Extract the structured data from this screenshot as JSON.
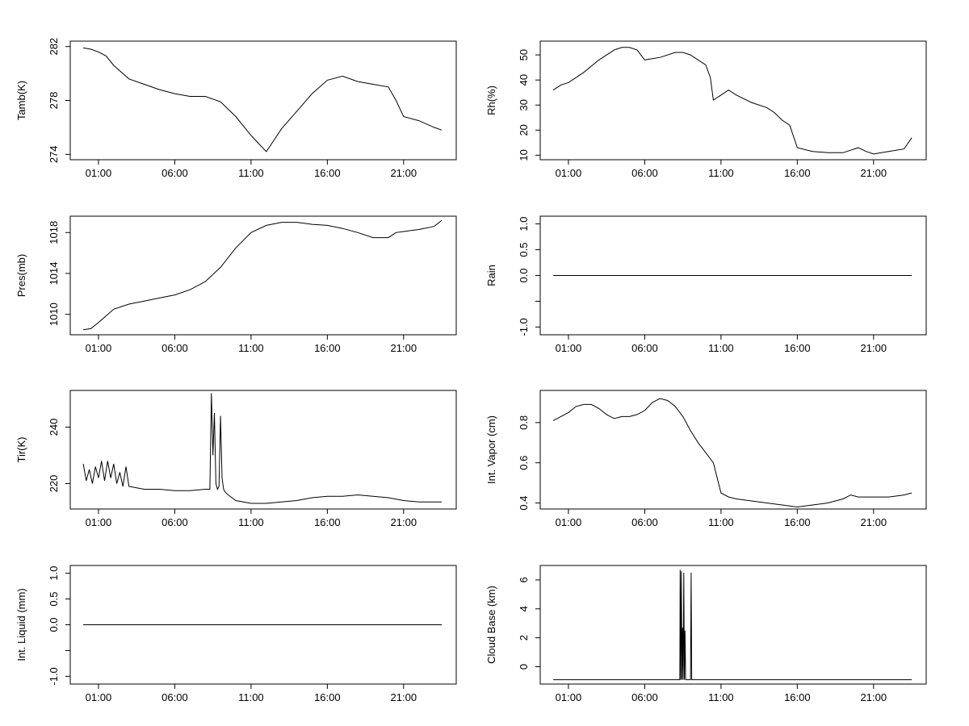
{
  "x_ticks": [
    "01:00",
    "06:00",
    "11:00",
    "16:00",
    "21:00"
  ],
  "chart_data": [
    {
      "type": "line",
      "ylabel": "Tamb(K)",
      "ylim": [
        273.6,
        282.4
      ],
      "yticks": [
        274,
        278,
        282
      ],
      "x": [
        0.0,
        0.5,
        1.0,
        1.5,
        2.0,
        3.0,
        4.0,
        5.0,
        6.0,
        7.0,
        8.0,
        9.0,
        10.0,
        11.0,
        11.5,
        12.0,
        13.0,
        14.0,
        15.0,
        16.0,
        17.0,
        18.0,
        19.0,
        20.0,
        20.5,
        21.0,
        22.0,
        23.0,
        23.5
      ],
      "values": [
        281.9,
        281.8,
        281.6,
        281.3,
        280.6,
        279.6,
        279.2,
        278.8,
        278.5,
        278.3,
        278.3,
        277.9,
        276.8,
        275.4,
        274.8,
        274.2,
        275.9,
        277.2,
        278.5,
        279.5,
        279.8,
        279.4,
        279.2,
        279.0,
        278.0,
        276.8,
        276.5,
        276.0,
        275.8
      ]
    },
    {
      "type": "line",
      "ylabel": "Rh(%)",
      "ylim": [
        8.2,
        55.5
      ],
      "yticks": [
        10,
        20,
        30,
        40,
        50
      ],
      "x": [
        0.0,
        0.5,
        1.0,
        2.0,
        3.0,
        4.0,
        4.5,
        5.0,
        5.5,
        6.0,
        7.0,
        8.0,
        8.5,
        9.0,
        9.5,
        10.0,
        10.3,
        10.5,
        11.0,
        11.5,
        12.0,
        13.0,
        14.0,
        14.5,
        15.0,
        15.5,
        16.0,
        17.0,
        18.0,
        19.0,
        19.5,
        20.0,
        20.5,
        21.0,
        22.0,
        23.0,
        23.5
      ],
      "values": [
        36,
        38,
        39,
        43,
        48,
        52,
        53,
        53,
        52,
        48,
        49,
        51,
        51,
        50,
        48,
        46,
        41,
        32,
        34,
        36,
        34,
        31,
        29,
        27,
        24,
        22,
        13,
        11.5,
        11,
        11,
        12,
        13,
        11.5,
        10.5,
        11.5,
        12.5,
        17
      ]
    },
    {
      "type": "line",
      "ylabel": "Pres(mb)",
      "ylim": [
        1008.0,
        1019.6
      ],
      "yticks": [
        1010,
        1014,
        1018
      ],
      "x": [
        0.0,
        0.5,
        1.0,
        2.0,
        3.0,
        4.0,
        5.0,
        6.0,
        7.0,
        8.0,
        9.0,
        10.0,
        11.0,
        12.0,
        13.0,
        14.0,
        15.0,
        16.0,
        17.0,
        18.0,
        19.0,
        20.0,
        20.5,
        21.0,
        22.0,
        23.0,
        23.5
      ],
      "values": [
        1008.5,
        1008.6,
        1009.2,
        1010.5,
        1011.0,
        1011.3,
        1011.6,
        1011.9,
        1012.4,
        1013.2,
        1014.6,
        1016.5,
        1018.0,
        1018.7,
        1019.0,
        1019.0,
        1018.8,
        1018.7,
        1018.4,
        1018.0,
        1017.5,
        1017.5,
        1018.0,
        1018.1,
        1018.3,
        1018.6,
        1019.2
      ]
    },
    {
      "type": "line",
      "ylabel": "Rain",
      "ylim": [
        -1.15,
        1.15
      ],
      "yticks": [
        -1.0,
        -0.5,
        0.0,
        0.5,
        1.0
      ],
      "ytick_labels": [
        "-1.0",
        "",
        "0.0",
        "0.5",
        "1.0"
      ],
      "x": [
        0.0,
        23.5
      ],
      "values": [
        0.0,
        0.0
      ]
    },
    {
      "type": "line",
      "ylabel": "Tir(K)",
      "ylim": [
        211.0,
        253.0
      ],
      "yticks": [
        220,
        240
      ],
      "x": [
        0.0,
        0.2,
        0.4,
        0.6,
        0.8,
        1.0,
        1.2,
        1.4,
        1.6,
        1.8,
        2.0,
        2.2,
        2.4,
        2.6,
        2.8,
        3.0,
        3.5,
        4.0,
        5.0,
        6.0,
        7.0,
        8.0,
        8.3,
        8.4,
        8.5,
        8.6,
        8.7,
        8.8,
        8.9,
        9.0,
        9.1,
        9.2,
        9.3,
        9.5,
        10.0,
        11.0,
        12.0,
        13.0,
        14.0,
        15.0,
        16.0,
        17.0,
        18.0,
        19.0,
        20.0,
        21.0,
        22.0,
        23.0,
        23.5
      ],
      "values": [
        227,
        221,
        225,
        220,
        226,
        222,
        228,
        221,
        228,
        222,
        227,
        220,
        224,
        219,
        226,
        219,
        218.5,
        218,
        218,
        217.5,
        217.5,
        218,
        218,
        252,
        230,
        245,
        220,
        218,
        219,
        244,
        222,
        218,
        217,
        216,
        214,
        213,
        213,
        213.5,
        214,
        215,
        215.5,
        215.5,
        216,
        215.5,
        215,
        214,
        213.5,
        213.5,
        213.5
      ]
    },
    {
      "type": "line",
      "ylabel": "Int. Vapor (cm)",
      "ylim": [
        0.37,
        0.96
      ],
      "yticks": [
        0.4,
        0.6,
        0.8
      ],
      "x": [
        0.0,
        0.5,
        1.0,
        1.5,
        2.0,
        2.5,
        3.0,
        3.5,
        4.0,
        4.5,
        5.0,
        5.5,
        6.0,
        6.5,
        7.0,
        7.5,
        8.0,
        8.5,
        9.0,
        9.5,
        10.0,
        10.5,
        11.0,
        11.5,
        12.0,
        13.0,
        14.0,
        15.0,
        16.0,
        17.0,
        18.0,
        19.0,
        19.5,
        20.0,
        21.0,
        22.0,
        23.0,
        23.5
      ],
      "values": [
        0.81,
        0.83,
        0.85,
        0.88,
        0.89,
        0.89,
        0.87,
        0.84,
        0.82,
        0.83,
        0.83,
        0.84,
        0.86,
        0.9,
        0.92,
        0.91,
        0.88,
        0.83,
        0.76,
        0.7,
        0.65,
        0.6,
        0.45,
        0.43,
        0.42,
        0.41,
        0.4,
        0.39,
        0.38,
        0.39,
        0.4,
        0.42,
        0.44,
        0.43,
        0.43,
        0.43,
        0.44,
        0.45
      ]
    },
    {
      "type": "line",
      "ylabel": "Int. Liquid (mm)",
      "ylim": [
        -1.15,
        1.15
      ],
      "yticks": [
        -1.0,
        -0.5,
        0.0,
        0.5,
        1.0
      ],
      "ytick_labels": [
        "-1.0",
        "",
        "0.0",
        "0.5",
        "1.0"
      ],
      "x": [
        0.0,
        23.5
      ],
      "values": [
        0.0,
        0.0
      ]
    },
    {
      "type": "line",
      "ylabel": "Cloud Base (km)",
      "ylim": [
        -1.2,
        7.0
      ],
      "yticks": [
        0,
        2,
        4,
        6
      ],
      "x": [
        0.0,
        8.3,
        8.32,
        8.36,
        8.4,
        8.44,
        8.48,
        8.52,
        8.56,
        8.6,
        8.64,
        8.68,
        8.72,
        8.76,
        8.8,
        8.84,
        8.88,
        8.92,
        8.96,
        9.0,
        9.04,
        9.08,
        9.12,
        23.5
      ],
      "values": [
        -0.9,
        -0.9,
        6.7,
        -0.9,
        6.6,
        -0.9,
        2.7,
        -0.9,
        6.5,
        -0.9,
        2.5,
        -0.9,
        -0.9,
        -0.9,
        -0.9,
        -0.9,
        -0.9,
        -0.9,
        -0.9,
        -0.9,
        6.5,
        -0.9,
        -0.9,
        -0.9
      ]
    }
  ]
}
